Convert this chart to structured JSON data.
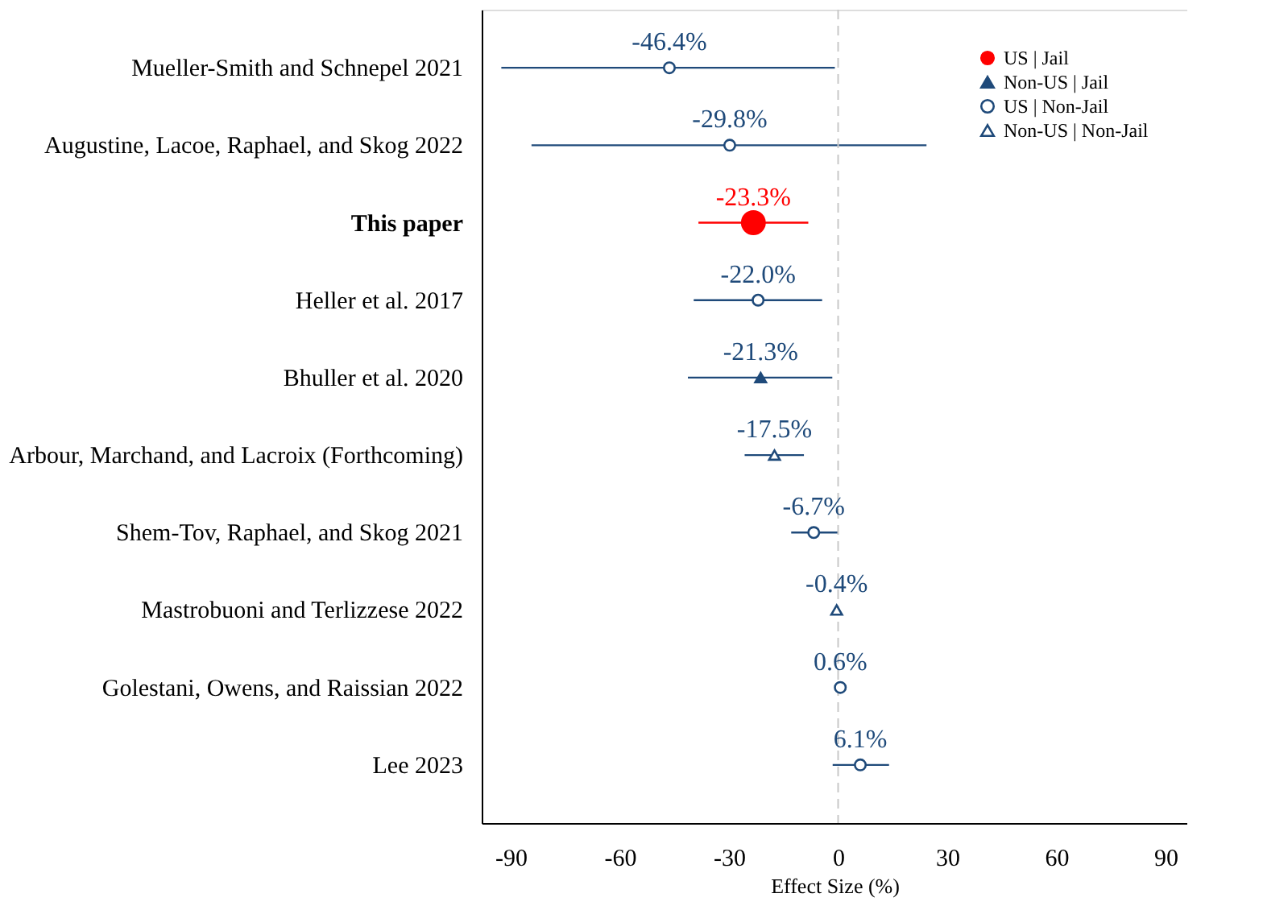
{
  "chart_data": {
    "type": "scatter",
    "orientation": "horizontal",
    "xlabel": "Effect Size (%)",
    "categories": [
      "Mueller-Smith and Schnepel 2021",
      "Augustine, Lacoe, Raphael, and Skog 2022",
      "This paper",
      "Heller et al. 2017",
      "Bhuller et al. 2020",
      "Arbour, Marchand, and Lacroix (Forthcoming)",
      "Shem-Tov, Raphael, and Skog 2021",
      "Mastrobuoni and Terlizzese 2022",
      "Golestani, Owens, and Raissian 2022",
      "Lee 2023"
    ],
    "series": [
      {
        "name": "US | Jail",
        "color": "#ff0000",
        "marker": "circle",
        "values": [
          null,
          null,
          -23.3,
          null,
          null,
          null,
          null,
          null,
          null,
          null
        ],
        "errors": [
          null,
          null,
          [
            -38.4,
            -8.2
          ],
          null,
          null,
          null,
          null,
          null,
          null,
          null
        ],
        "value_labels": [
          null,
          null,
          "-23.3%",
          null,
          null,
          null,
          null,
          null,
          null,
          null
        ]
      },
      {
        "name": "Non-US | Jail",
        "color": "#1f4a7a",
        "marker": "triangle",
        "values": [
          null,
          null,
          null,
          null,
          -21.3,
          null,
          null,
          null,
          null,
          null
        ],
        "errors": [
          null,
          null,
          null,
          null,
          [
            -41.3,
            -1.6
          ],
          null,
          null,
          null,
          null,
          null
        ],
        "value_labels": [
          null,
          null,
          null,
          null,
          "-21.3%",
          null,
          null,
          null,
          null,
          null
        ]
      },
      {
        "name": "US | Non-Jail",
        "color": "#1f4a7a",
        "marker": "circle",
        "values": [
          -46.4,
          -29.8,
          null,
          -22.0,
          null,
          null,
          -6.7,
          null,
          0.6,
          6.1
        ],
        "errors": [
          [
            -92.6,
            -0.9
          ],
          [
            -84.3,
            24.3
          ],
          null,
          [
            -39.7,
            -4.4
          ],
          null,
          null,
          [
            -12.9,
            -0.1
          ],
          null,
          null,
          [
            -1.5,
            14.0
          ]
        ],
        "value_labels": [
          "-46.4%",
          "-29.8%",
          null,
          "-22.0%",
          null,
          null,
          "-6.7%",
          null,
          "0.6%",
          "6.1%"
        ]
      },
      {
        "name": "Non-US | Non-Jail",
        "color": "#1f4a7a",
        "marker": "triangle",
        "values": [
          null,
          null,
          null,
          null,
          null,
          -17.5,
          null,
          -0.4,
          null,
          null
        ],
        "errors": [
          null,
          null,
          null,
          null,
          null,
          [
            -25.7,
            -9.4
          ],
          null,
          null,
          null,
          null
        ],
        "value_labels": [
          null,
          null,
          null,
          null,
          null,
          "-17.5%",
          null,
          "-0.4%",
          null,
          null
        ]
      }
    ],
    "xlim": [
      -98,
      96
    ],
    "xticks": [
      -90,
      -60,
      -30,
      0,
      30,
      60,
      90
    ],
    "ref_lines": [
      {
        "axis": "x",
        "value": 0,
        "color": "#c8c8c8",
        "line_style": "dashed"
      }
    ],
    "grid": false,
    "legend": "top right"
  }
}
